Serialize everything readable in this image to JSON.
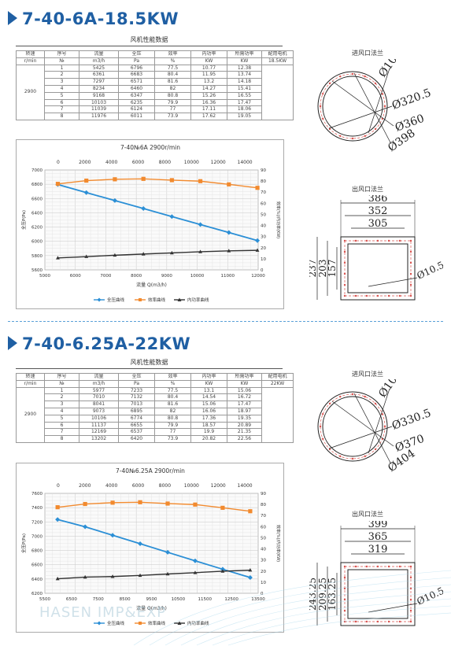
{
  "sections": [
    {
      "title": "7-40-6A-18.5KW",
      "table_title": "风机性能数据",
      "headers1": [
        "转速",
        "序号",
        "流量",
        "全压",
        "效率",
        "内功率",
        "所需功率",
        "配用电机"
      ],
      "headers2": [
        "r/min",
        "№",
        "m3/h",
        "Pa",
        "%",
        "KW",
        "KW",
        "18.5KW"
      ],
      "speed": "2900",
      "rows": [
        [
          "1",
          "5425",
          "6796",
          "77.5",
          "10.77",
          "12.38"
        ],
        [
          "2",
          "6361",
          "6683",
          "80.4",
          "11.95",
          "13.74"
        ],
        [
          "3",
          "7297",
          "6571",
          "81.6",
          "13.2",
          "14.18"
        ],
        [
          "4",
          "8234",
          "6460",
          "82",
          "14.27",
          "15.41"
        ],
        [
          "5",
          "9168",
          "6347",
          "80.8",
          "15.26",
          "16.55"
        ],
        [
          "6",
          "10103",
          "6235",
          "79.9",
          "16.36",
          "17.47"
        ],
        [
          "7",
          "11039",
          "6124",
          "77",
          "17.11",
          "18.06"
        ],
        [
          "8",
          "11976",
          "6011",
          "73.9",
          "17.62",
          "19.05"
        ]
      ],
      "chart_data": {
        "type": "line",
        "title": "7-40№6A 2900r/min",
        "xlabel": "流量 Q(m3/h)",
        "ylabel": "全压P(Pa)",
        "y2label": "效率(%)/内功率(KW)",
        "x_bottom_ticks": [
          "5000",
          "6000",
          "7000",
          "8000",
          "9000",
          "10000",
          "11000",
          "12000"
        ],
        "x_top_ticks": [
          "0",
          "2000",
          "4000",
          "6000",
          "8000",
          "10000",
          "12000",
          "14000"
        ],
        "y_ticks": [
          "5600",
          "5800",
          "6000",
          "6200",
          "6400",
          "6600",
          "6800",
          "7000"
        ],
        "y2_ticks": [
          "0",
          "10",
          "20",
          "30",
          "40",
          "50",
          "60",
          "70",
          "80",
          "90"
        ],
        "xlim": [
          5000,
          12000
        ],
        "ylim": [
          5600,
          7000
        ],
        "y2lim": [
          0,
          90
        ],
        "series": [
          {
            "name": "全压曲线",
            "axis": "left",
            "color": "#2b8fd6",
            "marker": "diamond",
            "x": [
              5425,
              6361,
              7297,
              8234,
              9168,
              10103,
              11039,
              11976
            ],
            "y": [
              6796,
              6683,
              6571,
              6460,
              6347,
              6235,
              6124,
              6011
            ]
          },
          {
            "name": "效率曲线",
            "axis": "right",
            "color": "#f28a2e",
            "marker": "square",
            "x": [
              5425,
              6361,
              7297,
              8234,
              9168,
              10103,
              11039,
              11976
            ],
            "y": [
              77.5,
              80.4,
              81.6,
              82,
              80.8,
              79.9,
              77,
              73.9
            ]
          },
          {
            "name": "内功率曲线",
            "axis": "right",
            "color": "#333333",
            "marker": "triangle",
            "x": [
              5425,
              6361,
              7297,
              8234,
              9168,
              10103,
              11039,
              11976
            ],
            "y": [
              10.77,
              11.95,
              13.2,
              14.27,
              15.26,
              16.36,
              17.11,
              17.62
            ]
          }
        ],
        "legend": [
          "全压曲线",
          "效率曲线",
          "内功率曲线"
        ],
        "grid": true,
        "legend_position": "bottom"
      },
      "inlet": {
        "label": "进风口法兰",
        "dims": [
          "Ø10",
          "Ø320.5",
          "Ø360",
          "Ø398"
        ]
      },
      "outlet": {
        "label": "出风口法兰",
        "dims": [
          "386",
          "352",
          "305",
          "237",
          "203",
          "157",
          "Ø10.5"
        ]
      }
    },
    {
      "title": "7-40-6.25A-22KW",
      "table_title": "风机性能数据",
      "headers1": [
        "转速",
        "序号",
        "流量",
        "全压",
        "效率",
        "内功率",
        "所需功率",
        "配用电机"
      ],
      "headers2": [
        "r/min",
        "№",
        "m3/h",
        "Pa",
        "%",
        "KW",
        "KW",
        "22KW"
      ],
      "speed": "2900",
      "rows": [
        [
          "1",
          "5977",
          "7233",
          "77.5",
          "13.1",
          "15.06"
        ],
        [
          "2",
          "7010",
          "7132",
          "80.4",
          "14.54",
          "16.72"
        ],
        [
          "3",
          "8041",
          "7013",
          "81.6",
          "15.06",
          "17.47"
        ],
        [
          "4",
          "9073",
          "6895",
          "82",
          "16.06",
          "18.97"
        ],
        [
          "5",
          "10106",
          "6774",
          "80.8",
          "17.36",
          "19.35"
        ],
        [
          "6",
          "11137",
          "6655",
          "79.9",
          "18.57",
          "20.89"
        ],
        [
          "7",
          "12169",
          "6537",
          "77",
          "19.9",
          "21.35"
        ],
        [
          "8",
          "13202",
          "6420",
          "73.9",
          "20.82",
          "22.56"
        ]
      ],
      "chart_data": {
        "type": "line",
        "title": "7-40№6.25A 2900r/min",
        "xlabel": "流量 Q(m3/h)",
        "ylabel": "全压P(Pa)",
        "y2label": "效率(%)/内功率(KW)",
        "x_bottom_ticks": [
          "5500",
          "6500",
          "7500",
          "8500",
          "9500",
          "10500",
          "11500",
          "12500",
          "13500"
        ],
        "x_top_ticks": [
          "0",
          "2000",
          "4000",
          "6000",
          "8000",
          "10000",
          "12000",
          "14000"
        ],
        "y_ticks": [
          "6200",
          "6400",
          "6600",
          "6800",
          "7000",
          "7200",
          "7400",
          "7600"
        ],
        "y2_ticks": [
          "0",
          "10",
          "20",
          "30",
          "40",
          "50",
          "60",
          "70",
          "80",
          "90"
        ],
        "xlim": [
          5500,
          13500
        ],
        "ylim": [
          6200,
          7600
        ],
        "y2lim": [
          0,
          90
        ],
        "series": [
          {
            "name": "全压曲线",
            "axis": "left",
            "color": "#2b8fd6",
            "marker": "diamond",
            "x": [
              5977,
              7010,
              8041,
              9073,
              10106,
              11137,
              12169,
              13202
            ],
            "y": [
              7233,
              7132,
              7013,
              6895,
              6774,
              6655,
              6537,
              6420
            ]
          },
          {
            "name": "效率曲线",
            "axis": "right",
            "color": "#f28a2e",
            "marker": "square",
            "x": [
              5977,
              7010,
              8041,
              9073,
              10106,
              11137,
              12169,
              13202
            ],
            "y": [
              77.5,
              80.4,
              81.6,
              82,
              80.8,
              79.9,
              77,
              73.9
            ]
          },
          {
            "name": "内功率曲线",
            "axis": "right",
            "color": "#333333",
            "marker": "triangle",
            "x": [
              5977,
              7010,
              8041,
              9073,
              10106,
              11137,
              12169,
              13202
            ],
            "y": [
              13.1,
              14.54,
              15.06,
              16.06,
              17.36,
              18.57,
              19.9,
              20.82
            ]
          }
        ],
        "legend": [
          "全压曲线",
          "效率曲线",
          "内功率曲线"
        ],
        "grid": true,
        "legend_position": "bottom"
      },
      "inlet": {
        "label": "进风口法兰",
        "dims": [
          "Ø10",
          "Ø330.5",
          "Ø370",
          "Ø404"
        ]
      },
      "outlet": {
        "label": "出风口法兰",
        "dims": [
          "399",
          "365",
          "319",
          "243.25",
          "209.25",
          "163.25",
          "Ø10.5"
        ]
      }
    }
  ],
  "watermark": "HASEN IMP&EXP",
  "colors": {
    "title": "#1f5fa3",
    "pressure": "#2b8fd6",
    "efficiency": "#f28a2e",
    "power": "#333333",
    "flange": "#d9534f",
    "divider": "#5aa0d8"
  }
}
